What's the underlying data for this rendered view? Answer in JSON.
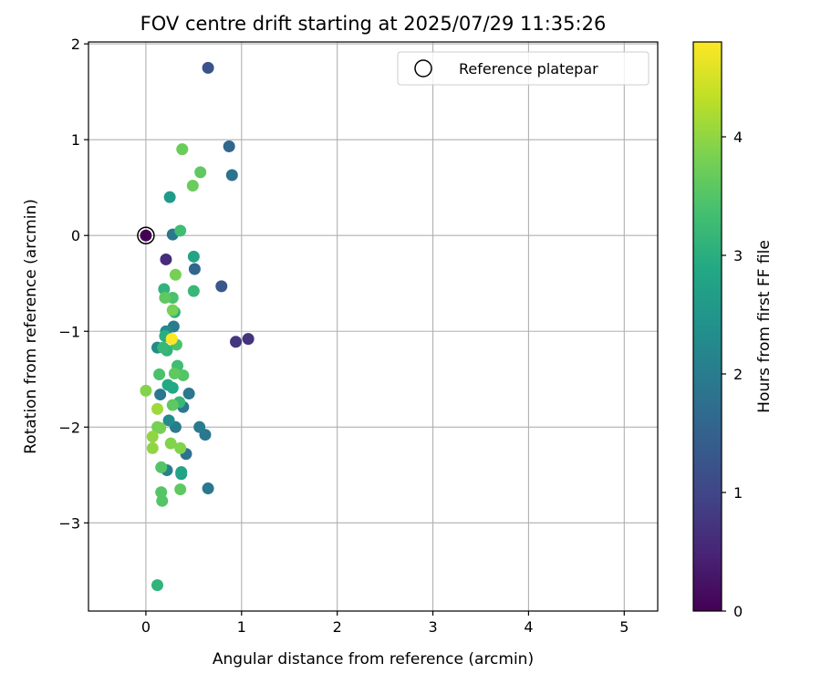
{
  "chart_data": {
    "type": "scatter",
    "title": "FOV centre drift starting at 2025/07/29 11:35:26",
    "xlabel": "Angular distance from reference (arcmin)",
    "ylabel": "Rotation from reference (arcmin)",
    "xlim": [
      -0.6,
      5.35
    ],
    "ylim": [
      -3.92,
      2.02
    ],
    "xticks": [
      0,
      1,
      2,
      3,
      4,
      5
    ],
    "xtick_labels": [
      "0",
      "1",
      "2",
      "3",
      "4",
      "5"
    ],
    "yticks": [
      -3,
      -2,
      -1,
      0,
      1,
      2
    ],
    "ytick_labels": [
      "−3",
      "−2",
      "−1",
      "0",
      "1",
      "2"
    ],
    "grid": true,
    "legend": {
      "position": "top-right",
      "entries": [
        {
          "label": "Reference platepar",
          "marker": "open-circle"
        }
      ]
    },
    "colorbar": {
      "label": "Hours from first FF file",
      "colormap": "viridis",
      "range": [
        0,
        4.8
      ],
      "ticks": [
        0,
        1,
        2,
        3,
        4
      ],
      "tick_labels": [
        "0",
        "1",
        "2",
        "3",
        "4"
      ]
    },
    "reference_point": {
      "x": 0,
      "y": 0
    },
    "points": [
      {
        "x": 0.0,
        "y": 0.0,
        "c": 0.0
      },
      {
        "x": 0.21,
        "y": -0.25,
        "c": 0.6
      },
      {
        "x": 1.07,
        "y": -1.08,
        "c": 0.7
      },
      {
        "x": 0.94,
        "y": -1.11,
        "c": 0.75
      },
      {
        "x": 0.65,
        "y": 1.75,
        "c": 1.2
      },
      {
        "x": 0.79,
        "y": -0.53,
        "c": 1.3
      },
      {
        "x": 0.87,
        "y": 0.93,
        "c": 1.6
      },
      {
        "x": 0.51,
        "y": -0.35,
        "c": 1.6
      },
      {
        "x": 0.9,
        "y": 0.63,
        "c": 1.8
      },
      {
        "x": 0.65,
        "y": -2.64,
        "c": 1.9
      },
      {
        "x": 0.62,
        "y": -2.08,
        "c": 1.9
      },
      {
        "x": 0.56,
        "y": -2.0,
        "c": 2.0
      },
      {
        "x": 0.42,
        "y": -2.28,
        "c": 1.8
      },
      {
        "x": 0.45,
        "y": -1.65,
        "c": 1.9
      },
      {
        "x": 0.39,
        "y": -1.79,
        "c": 1.9
      },
      {
        "x": 0.28,
        "y": 0.01,
        "c": 1.9
      },
      {
        "x": 0.29,
        "y": -0.95,
        "c": 2.0
      },
      {
        "x": 0.15,
        "y": -1.66,
        "c": 1.9
      },
      {
        "x": 0.31,
        "y": -2.0,
        "c": 2.0
      },
      {
        "x": 0.22,
        "y": -2.45,
        "c": 2.1
      },
      {
        "x": 0.24,
        "y": -1.93,
        "c": 2.3
      },
      {
        "x": 0.21,
        "y": -1.0,
        "c": 2.3
      },
      {
        "x": 0.12,
        "y": -1.17,
        "c": 2.3
      },
      {
        "x": 0.25,
        "y": 0.4,
        "c": 2.6
      },
      {
        "x": 0.5,
        "y": -0.22,
        "c": 2.8
      },
      {
        "x": 0.37,
        "y": -2.49,
        "c": 2.7
      },
      {
        "x": 0.37,
        "y": -2.47,
        "c": 2.8
      },
      {
        "x": 0.28,
        "y": -1.59,
        "c": 2.9
      },
      {
        "x": 0.23,
        "y": -1.56,
        "c": 2.9
      },
      {
        "x": 0.2,
        "y": -1.05,
        "c": 3.0
      },
      {
        "x": 0.3,
        "y": -0.8,
        "c": 3.0
      },
      {
        "x": 0.19,
        "y": -0.56,
        "c": 3.1
      },
      {
        "x": 0.12,
        "y": -3.65,
        "c": 3.1
      },
      {
        "x": 0.22,
        "y": -1.2,
        "c": 3.1
      },
      {
        "x": 0.18,
        "y": -1.17,
        "c": 3.2
      },
      {
        "x": 0.35,
        "y": -1.74,
        "c": 3.2
      },
      {
        "x": 0.5,
        "y": -0.58,
        "c": 3.2
      },
      {
        "x": 0.33,
        "y": -1.36,
        "c": 3.3
      },
      {
        "x": 0.36,
        "y": 0.05,
        "c": 3.3
      },
      {
        "x": 0.32,
        "y": -1.14,
        "c": 3.4
      },
      {
        "x": 0.28,
        "y": -0.65,
        "c": 3.4
      },
      {
        "x": 0.14,
        "y": -1.45,
        "c": 3.4
      },
      {
        "x": 0.39,
        "y": -1.46,
        "c": 3.5
      },
      {
        "x": 0.16,
        "y": -2.42,
        "c": 3.5
      },
      {
        "x": 0.16,
        "y": -2.68,
        "c": 3.5
      },
      {
        "x": 0.17,
        "y": -2.77,
        "c": 3.5
      },
      {
        "x": 0.3,
        "y": -1.44,
        "c": 3.6
      },
      {
        "x": 0.28,
        "y": -1.77,
        "c": 3.6
      },
      {
        "x": 0.2,
        "y": -0.65,
        "c": 3.6
      },
      {
        "x": 0.36,
        "y": -2.65,
        "c": 3.6
      },
      {
        "x": 0.57,
        "y": 0.66,
        "c": 3.6
      },
      {
        "x": 0.49,
        "y": 0.52,
        "c": 3.7
      },
      {
        "x": 0.38,
        "y": 0.9,
        "c": 3.7
      },
      {
        "x": 0.12,
        "y": -2.0,
        "c": 3.8
      },
      {
        "x": 0.15,
        "y": -2.01,
        "c": 3.8
      },
      {
        "x": 0.28,
        "y": -0.78,
        "c": 3.8
      },
      {
        "x": 0.31,
        "y": -0.41,
        "c": 3.8
      },
      {
        "x": 0.26,
        "y": -2.17,
        "c": 3.9
      },
      {
        "x": 0.36,
        "y": -2.22,
        "c": 3.9
      },
      {
        "x": 0.0,
        "y": -1.62,
        "c": 3.9
      },
      {
        "x": 0.07,
        "y": -2.1,
        "c": 4.0
      },
      {
        "x": 0.07,
        "y": -2.22,
        "c": 4.0
      },
      {
        "x": 0.12,
        "y": -1.81,
        "c": 4.1
      },
      {
        "x": 0.27,
        "y": -1.08,
        "c": 4.8
      }
    ]
  }
}
